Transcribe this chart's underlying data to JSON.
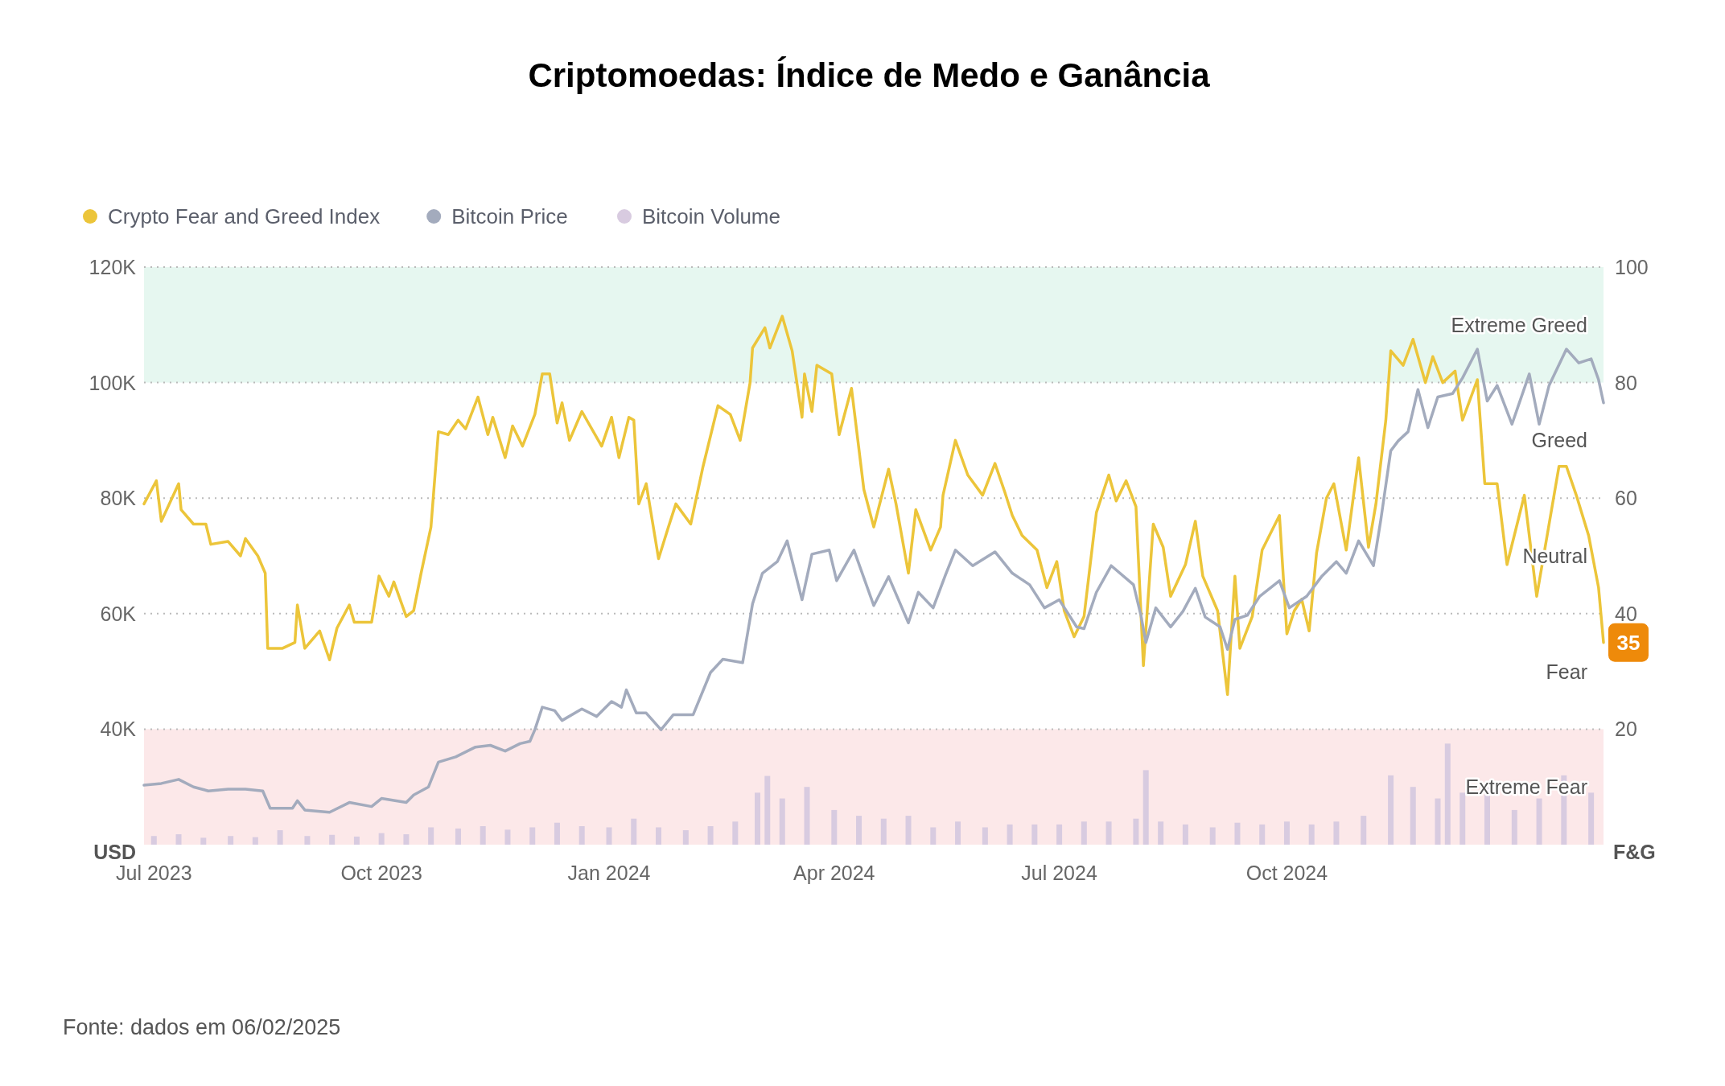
{
  "chart_data": {
    "type": "line",
    "title": "Criptomoedas: Índice de Medo e Ganância",
    "annotations": [
      "Fonte: dados em 06/02/2025",
      "Greed",
      "Neutral",
      "Fear"
    ],
    "ylabel": "USD",
    "y2label": "F&G",
    "legend": "top left",
    "grid": "y",
    "xlim": [
      "2023-06-27",
      "2025-02-06"
    ],
    "xticks": [
      {
        "value": "2023-07-01",
        "label": "Jul 2023"
      },
      {
        "value": "2023-10-01",
        "label": "Oct 2023"
      },
      {
        "value": "2024-01-01",
        "label": "Jan 2024"
      },
      {
        "value": "2024-04-01",
        "label": "Apr 2024"
      },
      {
        "value": "2024-07-01",
        "label": "Jul 2024"
      },
      {
        "value": "2024-10-01",
        "label": "Oct 2024"
      }
    ],
    "ylim": [
      20000,
      120000
    ],
    "yticks": [
      {
        "value": 40000,
        "label": "40K"
      },
      {
        "value": 60000,
        "label": "60K"
      },
      {
        "value": 80000,
        "label": "80K"
      },
      {
        "value": 100000,
        "label": "100K"
      },
      {
        "value": 120000,
        "label": "120K"
      }
    ],
    "y2lim": [
      0,
      100
    ],
    "y2ticks": [
      20,
      40,
      60,
      80,
      100
    ],
    "bands": [
      {
        "axis": "y2",
        "from": 80,
        "to": 100,
        "label": "Extreme Greed",
        "color": "#e6f7f0"
      },
      {
        "axis": "y2",
        "from": 0,
        "to": 20,
        "label": "Extreme Fear",
        "color": "#fce8e9"
      }
    ],
    "series": [
      {
        "name": "Bitcoin Volume",
        "type": "bar",
        "axis": "y2",
        "color": "#d8cbe0",
        "x": [
          "2023-07-01",
          "2023-07-11",
          "2023-07-21",
          "2023-08-01",
          "2023-08-11",
          "2023-08-21",
          "2023-09-01",
          "2023-09-11",
          "2023-09-21",
          "2023-10-01",
          "2023-10-11",
          "2023-10-21",
          "2023-11-01",
          "2023-11-11",
          "2023-11-21",
          "2023-12-01",
          "2023-12-11",
          "2023-12-21",
          "2024-01-01",
          "2024-01-11",
          "2024-01-21",
          "2024-02-01",
          "2024-02-11",
          "2024-02-21",
          "2024-03-01",
          "2024-03-05",
          "2024-03-11",
          "2024-03-21",
          "2024-04-01",
          "2024-04-11",
          "2024-04-21",
          "2024-05-01",
          "2024-05-11",
          "2024-05-21",
          "2024-06-01",
          "2024-06-11",
          "2024-06-21",
          "2024-07-01",
          "2024-07-11",
          "2024-07-21",
          "2024-08-01",
          "2024-08-05",
          "2024-08-11",
          "2024-08-21",
          "2024-09-01",
          "2024-09-11",
          "2024-09-21",
          "2024-10-01",
          "2024-10-11",
          "2024-10-21",
          "2024-11-01",
          "2024-11-12",
          "2024-11-21",
          "2024-12-01",
          "2024-12-05",
          "2024-12-11",
          "2024-12-21",
          "2025-01-01",
          "2025-01-11",
          "2025-01-21",
          "2025-02-01"
        ],
        "values": [
          1.5,
          1.8,
          1.2,
          1.5,
          1.3,
          2.5,
          1.5,
          1.7,
          1.4,
          2,
          1.8,
          3,
          2.8,
          3.2,
          2.6,
          3,
          3.8,
          3.2,
          3,
          4.5,
          3,
          2.5,
          3.2,
          4,
          9,
          11.9,
          8,
          10,
          6,
          5,
          4.5,
          5,
          3,
          4,
          3,
          3.5,
          3.5,
          3.5,
          4,
          4,
          4.5,
          12.9,
          4,
          3.5,
          3,
          3.8,
          3.5,
          4,
          3.5,
          4,
          5,
          12,
          10,
          8,
          17.5,
          9,
          10,
          6,
          8,
          12,
          9
        ]
      },
      {
        "name": "Bitcoin Price",
        "color": "#a3abbd",
        "x": [
          "2023-06-27",
          "2023-07-04",
          "2023-07-11",
          "2023-07-17",
          "2023-07-23",
          "2023-07-31",
          "2023-08-07",
          "2023-08-14",
          "2023-08-17",
          "2023-08-26",
          "2023-08-28",
          "2023-08-31",
          "2023-09-10",
          "2023-09-18",
          "2023-09-27",
          "2023-10-01",
          "2023-10-11",
          "2023-10-14",
          "2023-10-20",
          "2023-10-24",
          "2023-10-31",
          "2023-11-08",
          "2023-11-14",
          "2023-11-20",
          "2023-11-26",
          "2023-11-30",
          "2023-12-02",
          "2023-12-05",
          "2023-12-10",
          "2023-12-13",
          "2023-12-21",
          "2023-12-27",
          "2024-01-02",
          "2024-01-06",
          "2024-01-08",
          "2024-01-12",
          "2024-01-16",
          "2024-01-22",
          "2024-01-27",
          "2024-02-04",
          "2024-02-11",
          "2024-02-16",
          "2024-02-24",
          "2024-02-28",
          "2024-03-03",
          "2024-03-09",
          "2024-03-13",
          "2024-03-19",
          "2024-03-23",
          "2024-03-30",
          "2024-04-02",
          "2024-04-09",
          "2024-04-17",
          "2024-04-23",
          "2024-05-01",
          "2024-05-05",
          "2024-05-11",
          "2024-05-16",
          "2024-05-20",
          "2024-05-27",
          "2024-06-05",
          "2024-06-12",
          "2024-06-19",
          "2024-06-25",
          "2024-07-01",
          "2024-07-08",
          "2024-07-11",
          "2024-07-16",
          "2024-07-22",
          "2024-07-31",
          "2024-08-03",
          "2024-08-05",
          "2024-08-09",
          "2024-08-15",
          "2024-08-20",
          "2024-08-25",
          "2024-08-29",
          "2024-09-04",
          "2024-09-07",
          "2024-09-10",
          "2024-09-15",
          "2024-09-20",
          "2024-09-28",
          "2024-10-02",
          "2024-10-09",
          "2024-10-15",
          "2024-10-21",
          "2024-10-25",
          "2024-10-30",
          "2024-11-05",
          "2024-11-08",
          "2024-11-12",
          "2024-11-15",
          "2024-11-19",
          "2024-11-23",
          "2024-11-27",
          "2024-12-01",
          "2024-12-07",
          "2024-12-11",
          "2024-12-17",
          "2024-12-21",
          "2024-12-25",
          "2024-12-31",
          "2025-01-07",
          "2025-01-11",
          "2025-01-15",
          "2025-01-22",
          "2025-01-27",
          "2025-02-01",
          "2025-02-04",
          "2025-02-06"
        ],
        "values": [
          30300,
          30600,
          31300,
          30000,
          29300,
          29600,
          29600,
          29300,
          26300,
          26300,
          27600,
          26000,
          25600,
          27300,
          26600,
          28000,
          27300,
          28600,
          30000,
          34300,
          35200,
          36900,
          37200,
          36200,
          37500,
          37900,
          39900,
          43800,
          43200,
          41500,
          43500,
          42200,
          44800,
          43800,
          46800,
          42800,
          42800,
          39900,
          42500,
          42500,
          49800,
          52100,
          51500,
          61700,
          67000,
          69000,
          72600,
          62400,
          70300,
          71000,
          65700,
          71000,
          61400,
          66400,
          58400,
          63700,
          61000,
          66700,
          71000,
          68300,
          70700,
          67000,
          65000,
          61000,
          62400,
          57700,
          57400,
          63700,
          68300,
          65000,
          59700,
          55000,
          61000,
          57700,
          60400,
          64400,
          59400,
          57700,
          53800,
          59000,
          59700,
          63000,
          65700,
          61000,
          63000,
          66400,
          69000,
          67000,
          72600,
          68300,
          76300,
          88200,
          89900,
          91500,
          98800,
          92200,
          97500,
          98100,
          100800,
          105800,
          96800,
          99500,
          92800,
          101500,
          92800,
          99500,
          105800,
          103400,
          104100,
          100500,
          96500
        ]
      },
      {
        "name": "Crypto Fear and Greed Index",
        "axis": "y2",
        "color": "#ecc53a",
        "x": [
          "2023-06-27",
          "2023-07-02",
          "2023-07-04",
          "2023-07-11",
          "2023-07-12",
          "2023-07-17",
          "2023-07-22",
          "2023-07-24",
          "2023-07-31",
          "2023-08-05",
          "2023-08-07",
          "2023-08-12",
          "2023-08-15",
          "2023-08-16",
          "2023-08-22",
          "2023-08-27",
          "2023-08-28",
          "2023-08-31",
          "2023-09-06",
          "2023-09-10",
          "2023-09-13",
          "2023-09-18",
          "2023-09-20",
          "2023-09-27",
          "2023-09-30",
          "2023-10-04",
          "2023-10-06",
          "2023-10-11",
          "2023-10-14",
          "2023-10-17",
          "2023-10-21",
          "2023-10-24",
          "2023-10-28",
          "2023-11-01",
          "2023-11-04",
          "2023-11-09",
          "2023-11-13",
          "2023-11-15",
          "2023-11-20",
          "2023-11-23",
          "2023-11-27",
          "2023-12-02",
          "2023-12-05",
          "2023-12-08",
          "2023-12-11",
          "2023-12-13",
          "2023-12-16",
          "2023-12-21",
          "2023-12-29",
          "2024-01-02",
          "2024-01-05",
          "2024-01-09",
          "2024-01-11",
          "2024-01-13",
          "2024-01-16",
          "2024-01-21",
          "2024-01-25",
          "2024-01-28",
          "2024-02-03",
          "2024-02-08",
          "2024-02-14",
          "2024-02-19",
          "2024-02-23",
          "2024-02-27",
          "2024-02-28",
          "2024-03-04",
          "2024-03-06",
          "2024-03-11",
          "2024-03-15",
          "2024-03-19",
          "2024-03-20",
          "2024-03-23",
          "2024-03-25",
          "2024-03-31",
          "2024-04-03",
          "2024-04-08",
          "2024-04-13",
          "2024-04-17",
          "2024-04-23",
          "2024-04-26",
          "2024-05-01",
          "2024-05-04",
          "2024-05-10",
          "2024-05-14",
          "2024-05-15",
          "2024-05-20",
          "2024-05-25",
          "2024-05-31",
          "2024-06-05",
          "2024-06-09",
          "2024-06-12",
          "2024-06-16",
          "2024-06-22",
          "2024-06-26",
          "2024-06-30",
          "2024-07-03",
          "2024-07-07",
          "2024-07-11",
          "2024-07-16",
          "2024-07-21",
          "2024-07-24",
          "2024-07-28",
          "2024-08-01",
          "2024-08-04",
          "2024-08-08",
          "2024-08-12",
          "2024-08-15",
          "2024-08-21",
          "2024-08-25",
          "2024-08-28",
          "2024-09-03",
          "2024-09-07",
          "2024-09-10",
          "2024-09-12",
          "2024-09-17",
          "2024-09-21",
          "2024-09-28",
          "2024-10-01",
          "2024-10-04",
          "2024-10-07",
          "2024-10-10",
          "2024-10-13",
          "2024-10-17",
          "2024-10-20",
          "2024-10-25",
          "2024-10-30",
          "2024-11-03",
          "2024-11-06",
          "2024-11-10",
          "2024-11-12",
          "2024-11-17",
          "2024-11-21",
          "2024-11-26",
          "2024-11-29",
          "2024-12-03",
          "2024-12-08",
          "2024-12-11",
          "2024-12-17",
          "2024-12-20",
          "2024-12-25",
          "2024-12-29",
          "2025-01-05",
          "2025-01-10",
          "2025-01-14",
          "2025-01-19",
          "2025-01-22",
          "2025-01-26",
          "2025-01-31",
          "2025-02-04",
          "2025-02-06"
        ],
        "values": [
          59,
          63,
          56,
          62.5,
          58,
          55.5,
          55.5,
          52,
          52.5,
          50,
          53,
          50,
          47,
          34,
          34,
          35,
          41.5,
          34,
          37,
          32,
          37.5,
          41.5,
          38.5,
          38.5,
          46.5,
          43,
          45.5,
          39.5,
          40.5,
          47,
          55,
          71.5,
          71,
          73.5,
          72,
          77.5,
          71,
          74,
          67,
          72.5,
          69,
          74.5,
          81.5,
          81.5,
          73,
          76.5,
          70,
          75,
          69,
          74,
          67,
          74,
          73.5,
          59,
          62.5,
          49.5,
          55,
          59,
          55.5,
          65.5,
          76,
          74.5,
          70,
          80,
          86,
          89.5,
          86,
          91.5,
          85.5,
          74,
          81.5,
          75,
          83,
          81.5,
          71,
          79,
          61.5,
          55,
          65,
          59,
          47,
          58,
          51,
          55,
          60.5,
          70,
          64,
          60.5,
          66,
          61,
          57,
          53.5,
          51,
          44.5,
          49,
          40.5,
          36,
          39.5,
          57.5,
          64,
          59.5,
          63,
          58.5,
          31,
          55.5,
          51.5,
          43,
          48.5,
          56,
          46.5,
          40.5,
          26,
          46.5,
          34,
          39.5,
          51,
          57,
          36.5,
          40.5,
          42.5,
          37,
          50.5,
          60,
          62.5,
          51,
          67,
          51.5,
          59,
          73.5,
          85.5,
          83,
          87.5,
          80,
          84.5,
          80,
          82,
          73.5,
          80.5,
          62.5,
          62.5,
          48.5,
          60.5,
          43,
          53,
          65.5,
          65.5,
          60.5,
          53.5,
          44.5,
          35
        ],
        "value_labels": [
          null,
          null,
          null,
          null,
          null,
          null,
          null,
          null,
          null,
          null,
          null,
          null,
          null,
          null,
          null,
          null,
          null,
          null,
          null,
          null,
          null,
          null,
          null,
          null,
          null,
          null,
          null,
          null,
          null,
          null,
          null,
          null,
          null,
          null,
          null,
          null,
          null,
          null,
          null,
          null,
          null,
          null,
          null,
          null,
          null,
          null,
          null,
          null,
          null,
          null,
          null,
          null,
          null,
          null,
          null,
          null,
          null,
          null,
          null,
          null,
          null,
          null,
          null,
          null,
          null,
          null,
          null,
          null,
          null,
          null,
          null,
          null,
          null,
          null,
          null,
          null,
          null,
          null,
          null,
          null,
          null,
          null,
          null,
          null,
          null,
          null,
          null,
          null,
          null,
          null,
          null,
          null,
          null,
          null,
          null,
          null,
          null,
          null,
          null,
          null,
          null,
          null,
          null,
          null,
          null,
          null,
          null,
          null,
          null,
          null,
          null,
          null,
          null,
          null,
          null,
          null,
          null,
          null,
          null,
          null,
          null,
          null,
          null,
          null,
          null,
          null,
          null,
          null,
          null,
          null,
          null,
          null,
          null,
          null,
          null,
          null,
          null,
          null,
          null,
          null,
          null,
          null,
          null,
          null,
          null,
          null,
          null,
          null,
          null,
          "35"
        ]
      }
    ]
  }
}
